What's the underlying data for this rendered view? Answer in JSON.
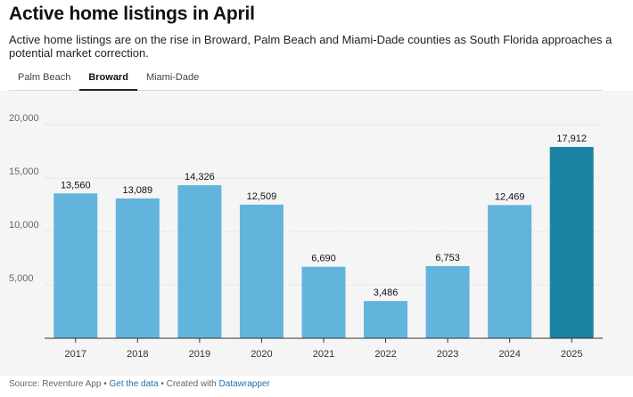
{
  "header": {
    "title": "Active home listings in April",
    "subtitle": "Active home listings are on the rise in Broward, Palm Beach and Miami-Dade counties as South Florida approaches a potential market correction."
  },
  "tabs": [
    {
      "label": "Palm Beach",
      "active": false
    },
    {
      "label": "Broward",
      "active": true
    },
    {
      "label": "Miami-Dade",
      "active": false
    }
  ],
  "colors": {
    "bar": "#62b4dc",
    "highlight": "#1b83a3",
    "grid": "#d0d0d0",
    "background": "#f5f5f5",
    "link": "#1c6fb0"
  },
  "chart_data": {
    "type": "bar",
    "categories": [
      "2017",
      "2018",
      "2019",
      "2020",
      "2021",
      "2022",
      "2023",
      "2024",
      "2025"
    ],
    "values": [
      13560,
      13089,
      14326,
      12509,
      6690,
      3486,
      6753,
      12469,
      17912
    ],
    "value_labels": [
      "13,560",
      "13,089",
      "14,326",
      "12,509",
      "6,690",
      "3,486",
      "6,753",
      "12,469",
      "17,912"
    ],
    "highlight_index": 8,
    "yticks": [
      5000,
      10000,
      15000,
      20000
    ],
    "ytick_labels": [
      "5,000",
      "10,000",
      "15,000",
      "20,000"
    ],
    "ylim": [
      0,
      20000
    ],
    "grid": true
  },
  "footer": {
    "source": "Source: Reventure App",
    "separator": "•",
    "get_data": "Get the data",
    "created_with": "Created with",
    "tool": "Datawrapper"
  }
}
